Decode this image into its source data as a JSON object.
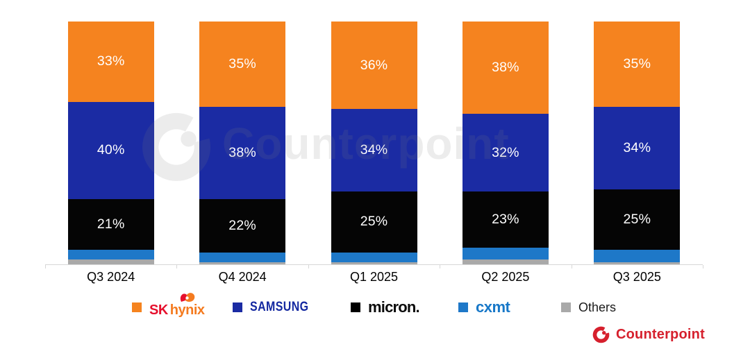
{
  "chart_data": {
    "type": "bar",
    "subtype": "stacked-100-percent",
    "title": "",
    "categories": [
      "Q3 2024",
      "Q4 2024",
      "Q1 2025",
      "Q2 2025",
      "Q3 2025"
    ],
    "series": [
      {
        "name": "SK hynix",
        "color": "#f5831f",
        "values": [
          33,
          35,
          36,
          38,
          35
        ],
        "data_labels": [
          "33%",
          "35%",
          "36%",
          "38%",
          "35%"
        ]
      },
      {
        "name": "Samsung",
        "color": "#1b2ba3",
        "values": [
          40,
          38,
          34,
          32,
          34
        ],
        "data_labels": [
          "40%",
          "38%",
          "34%",
          "32%",
          "34%"
        ]
      },
      {
        "name": "Micron",
        "color": "#050505",
        "values": [
          21,
          22,
          25,
          23,
          25
        ],
        "data_labels": [
          "21%",
          "22%",
          "25%",
          "23%",
          "25%"
        ]
      },
      {
        "name": "CXMT",
        "color": "#1e78c8",
        "values": [
          4,
          4,
          4,
          5,
          5
        ],
        "data_labels": null,
        "estimated": true
      },
      {
        "name": "Others",
        "color": "#a9a9a9",
        "values": [
          2,
          1,
          1,
          2,
          1
        ],
        "data_labels": null,
        "estimated": true
      }
    ],
    "value_unit": "%",
    "ylim": [
      0,
      100
    ],
    "grid": false,
    "legend_position": "bottom"
  },
  "legend": {
    "items": [
      {
        "id": "sk-hynix",
        "swatch": "#f5831f",
        "logo_sk": "SK",
        "logo_hynix": "hynix"
      },
      {
        "id": "samsung",
        "swatch": "#1b2ba3",
        "wordmark": "SAMSUNG"
      },
      {
        "id": "micron",
        "swatch": "#000000",
        "wordmark": "micron."
      },
      {
        "id": "cxmt",
        "swatch": "#1e78c8",
        "wordmark": "cxmt"
      },
      {
        "id": "others",
        "swatch": "#a9a9a9",
        "label": "Others"
      }
    ]
  },
  "watermark": {
    "text": "Counterpoint"
  },
  "footer": {
    "brand": "Counterpoint",
    "color": "#d6202d"
  }
}
